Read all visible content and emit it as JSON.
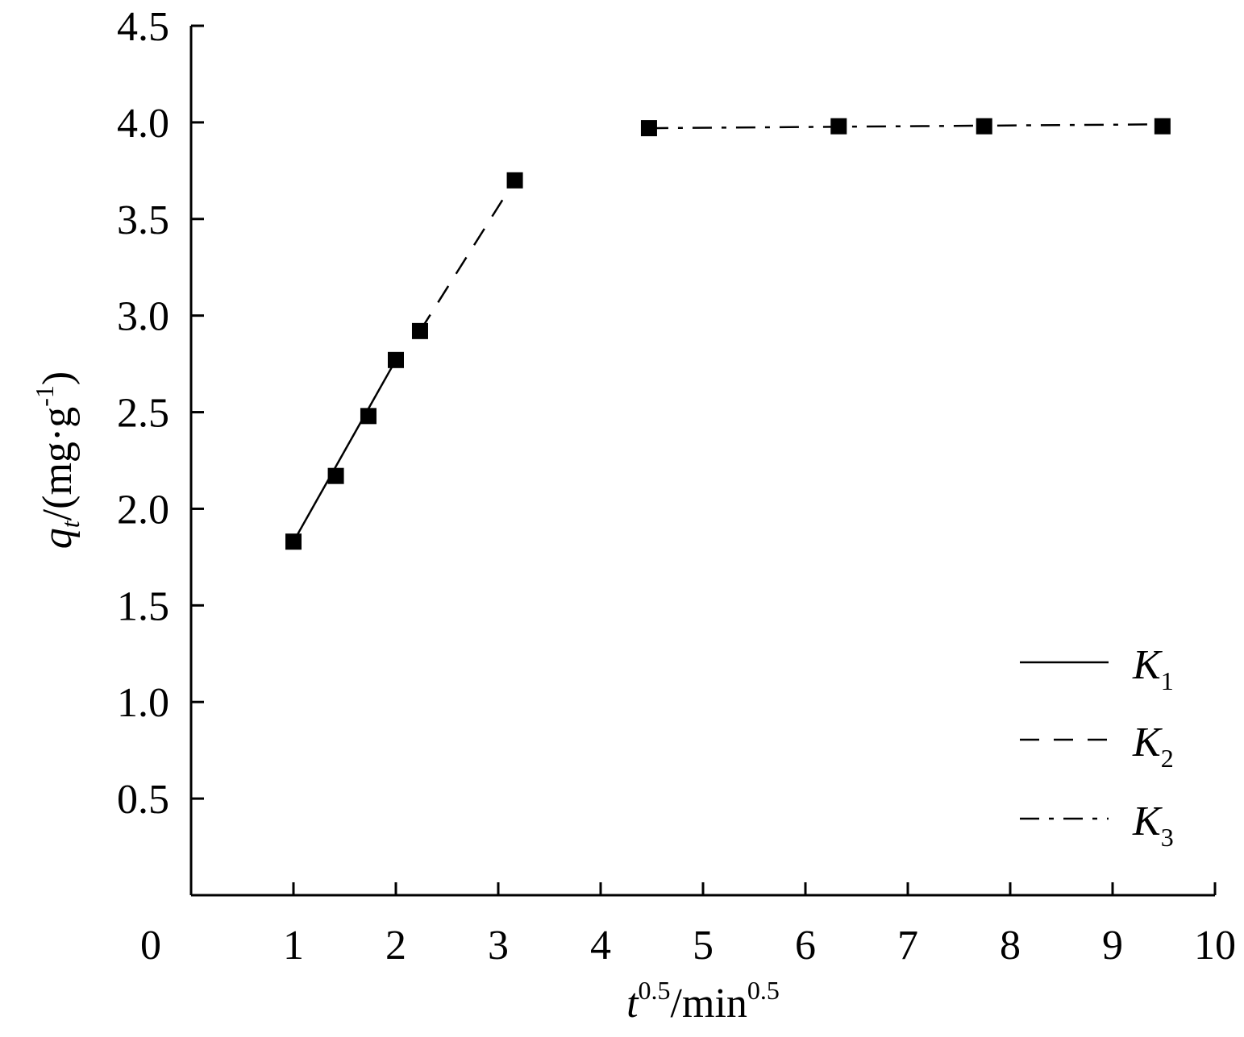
{
  "chart_data": {
    "type": "scatter",
    "xlabel": {
      "main": "t",
      "sup": "0.5",
      "rest": "/min",
      "rest_sup": "0.5"
    },
    "ylabel": {
      "main": "q",
      "sub": "t",
      "rest": "/(mg·g",
      "sup": "-1",
      "close": ")"
    },
    "xlim": [
      0,
      10
    ],
    "ylim": [
      0,
      4.5
    ],
    "x_ticks": [
      0,
      1,
      2,
      3,
      4,
      5,
      6,
      7,
      8,
      9,
      10
    ],
    "y_ticks": [
      0.5,
      1.0,
      1.5,
      2.0,
      2.5,
      3.0,
      3.5,
      4.0,
      4.5
    ],
    "x_tick_labels": [
      "0",
      "1",
      "2",
      "3",
      "4",
      "5",
      "6",
      "7",
      "8",
      "9",
      "10"
    ],
    "y_tick_labels": [
      "0.5",
      "1.0",
      "1.5",
      "2.0",
      "2.5",
      "3.0",
      "3.5",
      "4.0",
      "4.5"
    ],
    "points": {
      "x": [
        1.0,
        1.414,
        1.732,
        2.0,
        2.236,
        3.162,
        4.472,
        6.325,
        7.746,
        9.487
      ],
      "y": [
        1.83,
        2.17,
        2.48,
        2.77,
        2.92,
        3.7,
        3.97,
        3.98,
        3.98,
        3.98
      ]
    },
    "fit_lines": [
      {
        "name": "K",
        "sub": "1",
        "style": "solid",
        "x": [
          1.0,
          2.0
        ],
        "y": [
          1.83,
          2.77
        ]
      },
      {
        "name": "K",
        "sub": "2",
        "style": "dashed",
        "x": [
          2.236,
          3.162
        ],
        "y": [
          2.92,
          3.7
        ]
      },
      {
        "name": "K",
        "sub": "3",
        "style": "dashdot",
        "x": [
          4.472,
          9.487
        ],
        "y": [
          3.97,
          3.99
        ]
      }
    ],
    "legend_position": "bottom-right",
    "marker": "square",
    "color": "#000000"
  }
}
